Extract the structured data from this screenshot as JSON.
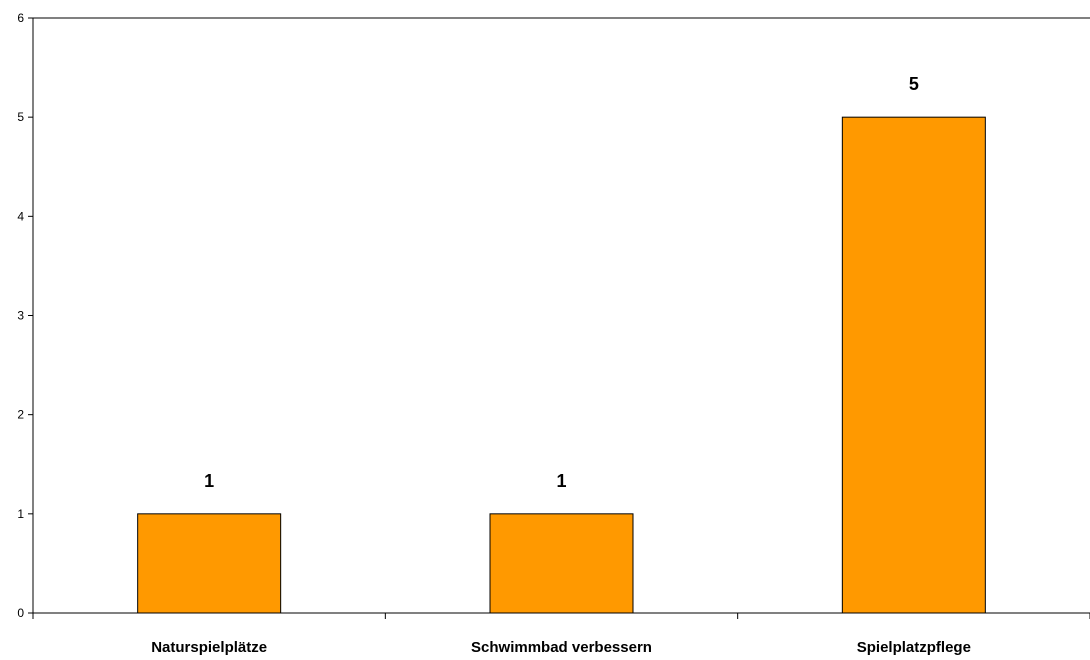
{
  "chart_data": {
    "type": "bar",
    "categories": [
      "Naturspielplätze",
      "Schwimmbad verbessern",
      "Spielplatzpflege"
    ],
    "values": [
      1,
      1,
      5
    ],
    "data_labels": [
      "1",
      "1",
      "5"
    ],
    "title": "",
    "xlabel": "",
    "ylabel": "",
    "ylim": [
      0,
      6
    ],
    "yticks": [
      "0",
      "1",
      "2",
      "3",
      "4",
      "5",
      "6"
    ],
    "grid": false,
    "legend": "none",
    "bar_color": "#FF9900",
    "bar_stroke": "#000000"
  }
}
